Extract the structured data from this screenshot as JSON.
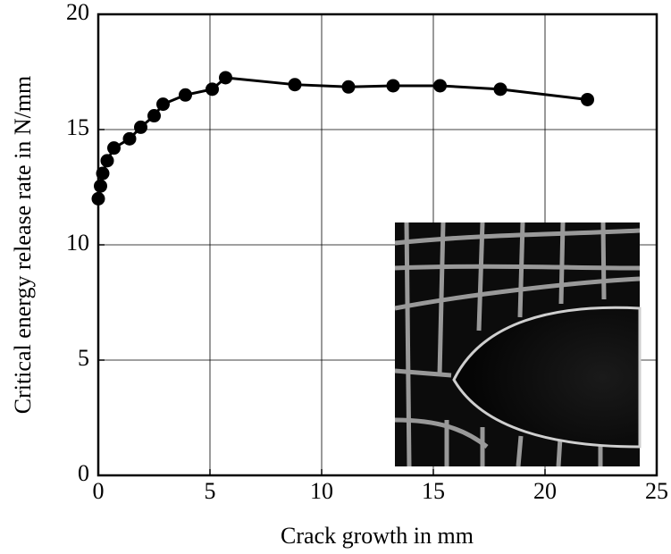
{
  "chart_data": {
    "type": "line",
    "x_label": "Crack growth in mm",
    "y_label": "Critical energy release rate in N/mm",
    "x": [
      0,
      0.1,
      0.2,
      0.4,
      0.7,
      1.4,
      1.9,
      2.5,
      2.9,
      3.9,
      5.1,
      5.7,
      8.8,
      11.2,
      13.2,
      15.3,
      18.0,
      21.9
    ],
    "values": [
      12.0,
      12.55,
      13.1,
      13.65,
      14.2,
      14.6,
      15.1,
      15.6,
      16.1,
      16.5,
      16.75,
      17.25,
      16.95,
      16.85,
      16.9,
      16.9,
      16.75,
      16.3
    ],
    "color": "#000000",
    "xlim": [
      0,
      25
    ],
    "ylim": [
      0,
      20
    ],
    "xticks": [
      0,
      5,
      10,
      15,
      20,
      25
    ],
    "yticks": [
      0,
      5,
      10,
      15,
      20
    ],
    "grid": true
  }
}
